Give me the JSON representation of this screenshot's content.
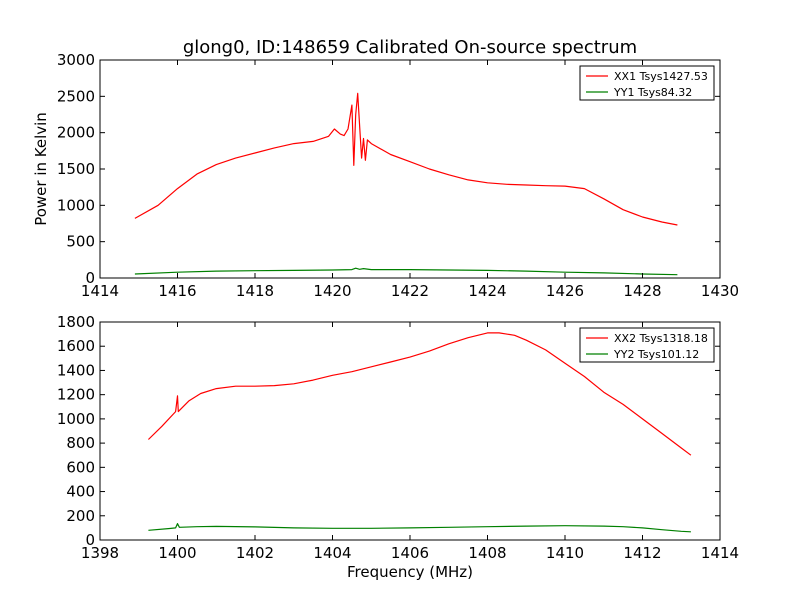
{
  "chart_data": [
    {
      "type": "line",
      "title": "glong0, ID:148659 Calibrated On-source spectrum",
      "xlabel": "",
      "ylabel": "Power in Kelvin",
      "xlim": [
        1414,
        1430
      ],
      "ylim": [
        0,
        3000
      ],
      "xticks": [
        1414,
        1416,
        1418,
        1420,
        1422,
        1424,
        1426,
        1428,
        1430
      ],
      "yticks": [
        0,
        500,
        1000,
        1500,
        2000,
        2500,
        3000
      ],
      "legend_position": "top-right",
      "series": [
        {
          "name": "XX1 Tsys1427.53",
          "color": "#ff0000",
          "x": [
            1414.9,
            1415.5,
            1416.0,
            1416.5,
            1417.0,
            1417.5,
            1418.0,
            1418.5,
            1419.0,
            1419.5,
            1419.9,
            1420.05,
            1420.2,
            1420.3,
            1420.4,
            1420.5,
            1420.55,
            1420.6,
            1420.65,
            1420.7,
            1420.75,
            1420.8,
            1420.85,
            1420.9,
            1421.0,
            1421.5,
            1422.0,
            1422.5,
            1423.0,
            1423.5,
            1424.0,
            1424.5,
            1425.0,
            1425.5,
            1426.0,
            1426.5,
            1427.0,
            1427.5,
            1428.0,
            1428.5,
            1428.9
          ],
          "y": [
            820,
            1000,
            1230,
            1430,
            1560,
            1650,
            1720,
            1790,
            1850,
            1880,
            1950,
            2050,
            1980,
            1960,
            2050,
            2380,
            1550,
            2250,
            2540,
            2100,
            1650,
            1920,
            1620,
            1900,
            1850,
            1700,
            1600,
            1500,
            1420,
            1350,
            1310,
            1290,
            1280,
            1270,
            1265,
            1230,
            1090,
            940,
            840,
            770,
            730
          ]
        },
        {
          "name": "YY1 Tsys84.32",
          "color": "#008000",
          "x": [
            1414.9,
            1416.0,
            1417.0,
            1418.0,
            1419.0,
            1420.0,
            1420.5,
            1420.6,
            1420.7,
            1420.8,
            1421.0,
            1422.0,
            1423.0,
            1424.0,
            1425.0,
            1426.0,
            1427.0,
            1428.0,
            1428.9
          ],
          "y": [
            55,
            80,
            95,
            100,
            105,
            110,
            115,
            135,
            120,
            130,
            115,
            115,
            110,
            105,
            95,
            80,
            70,
            55,
            45
          ]
        }
      ]
    },
    {
      "type": "line",
      "title": "",
      "xlabel": "Frequency (MHz)",
      "ylabel": "",
      "xlim": [
        1398,
        1414
      ],
      "ylim": [
        0,
        1800
      ],
      "xticks": [
        1398,
        1400,
        1402,
        1404,
        1406,
        1408,
        1410,
        1412,
        1414
      ],
      "yticks": [
        0,
        200,
        400,
        600,
        800,
        1000,
        1200,
        1400,
        1600,
        1800
      ],
      "legend_position": "top-right",
      "series": [
        {
          "name": "XX2 Tsys1318.18",
          "color": "#ff0000",
          "x": [
            1399.25,
            1399.6,
            1399.95,
            1400.0,
            1400.02,
            1400.3,
            1400.6,
            1401.0,
            1401.5,
            1402.0,
            1402.5,
            1403.0,
            1403.5,
            1404.0,
            1404.5,
            1405.0,
            1405.5,
            1406.0,
            1406.5,
            1407.0,
            1407.5,
            1408.0,
            1408.3,
            1408.7,
            1409.0,
            1409.5,
            1410.0,
            1410.5,
            1411.0,
            1411.5,
            1412.0,
            1412.5,
            1413.0,
            1413.25
          ],
          "y": [
            830,
            940,
            1060,
            1190,
            1060,
            1150,
            1210,
            1250,
            1270,
            1270,
            1275,
            1290,
            1320,
            1360,
            1390,
            1430,
            1470,
            1510,
            1560,
            1620,
            1670,
            1710,
            1710,
            1690,
            1650,
            1570,
            1460,
            1350,
            1220,
            1120,
            1000,
            880,
            760,
            700
          ]
        },
        {
          "name": "YY2 Tsys101.12",
          "color": "#008000",
          "x": [
            1399.25,
            1399.8,
            1399.95,
            1400.0,
            1400.05,
            1400.5,
            1401.0,
            1402.0,
            1403.0,
            1404.0,
            1405.0,
            1406.0,
            1407.0,
            1408.0,
            1409.0,
            1410.0,
            1411.0,
            1411.5,
            1412.0,
            1412.5,
            1413.0,
            1413.25
          ],
          "y": [
            80,
            95,
            100,
            135,
            105,
            110,
            112,
            108,
            100,
            97,
            97,
            100,
            105,
            110,
            115,
            118,
            115,
            110,
            100,
            85,
            72,
            68
          ]
        }
      ]
    }
  ]
}
